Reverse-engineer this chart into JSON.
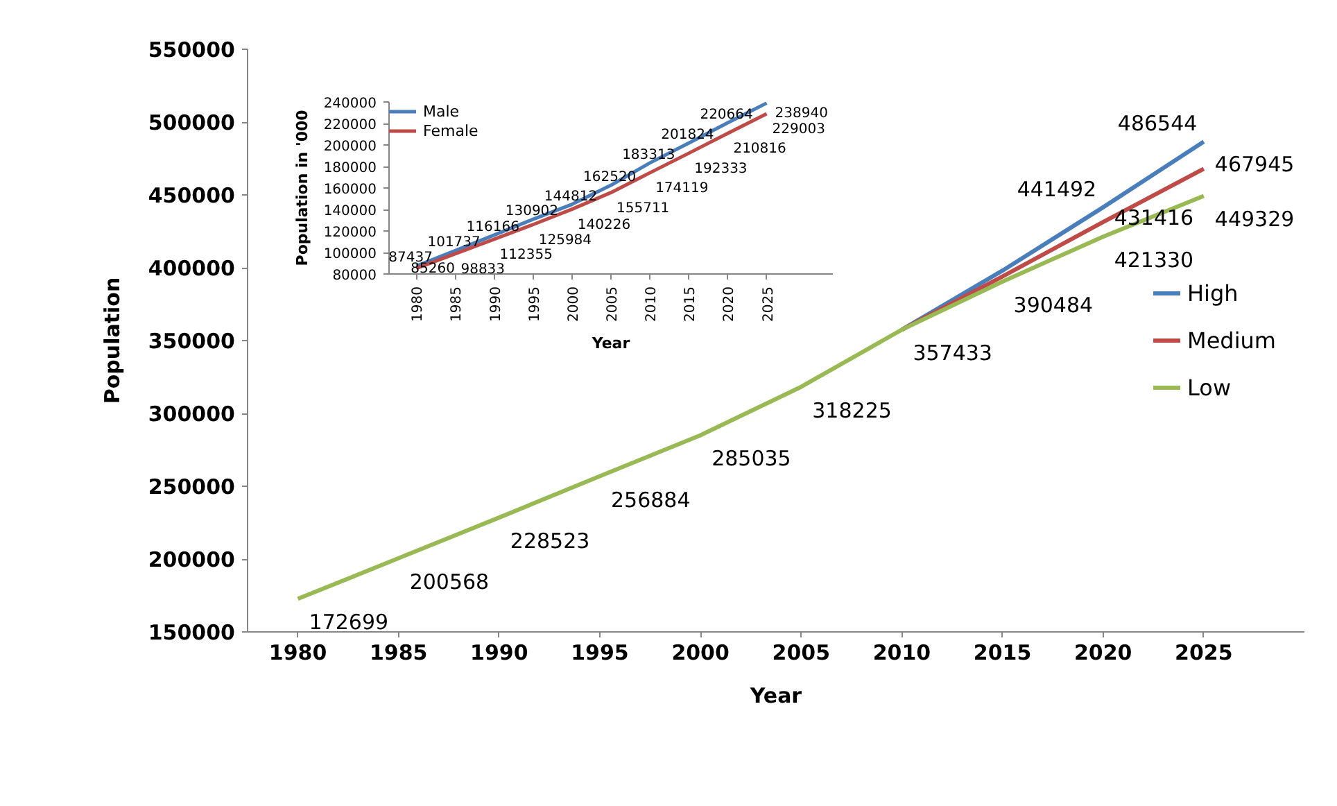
{
  "chart_data": [
    {
      "type": "line",
      "xlabel": "Year",
      "ylabel": "Population",
      "categories": [
        "1980",
        "1985",
        "1990",
        "1995",
        "2000",
        "2005",
        "2010",
        "2015",
        "2020",
        "2025"
      ],
      "ylim": [
        150000,
        550000
      ],
      "yticks": [
        150000,
        200000,
        250000,
        300000,
        350000,
        400000,
        450000,
        500000,
        550000
      ],
      "legend": "right",
      "series": [
        {
          "name": "High",
          "color": "#4a7ebb",
          "values": [
            null,
            null,
            null,
            null,
            null,
            null,
            357433,
            398000,
            441492,
            486544
          ],
          "value_labels": [
            null,
            null,
            null,
            null,
            null,
            null,
            null,
            null,
            "441492",
            "486544"
          ]
        },
        {
          "name": "Medium",
          "color": "#be4b48",
          "values": [
            null,
            null,
            null,
            null,
            null,
            null,
            357433,
            394000,
            431416,
            467945
          ],
          "value_labels": [
            null,
            null,
            null,
            null,
            null,
            null,
            null,
            null,
            "431416",
            "467945"
          ]
        },
        {
          "name": "Low",
          "color": "#98b954",
          "values": [
            172699,
            200568,
            228523,
            256884,
            285035,
            318225,
            357433,
            390484,
            421330,
            449329
          ],
          "value_labels": [
            "172699",
            "200568",
            "228523",
            "256884",
            "285035",
            "318225",
            "357433",
            "390484",
            "421330",
            "449329"
          ]
        }
      ]
    },
    {
      "type": "line",
      "xlabel": "Year",
      "ylabel": "Population in '000",
      "categories": [
        "1980",
        "1985",
        "1990",
        "1995",
        "2000",
        "2005",
        "2010",
        "2015",
        "2020",
        "2025"
      ],
      "ylim": [
        80000,
        240000
      ],
      "yticks": [
        80000,
        100000,
        120000,
        140000,
        160000,
        180000,
        200000,
        220000,
        240000
      ],
      "legend": "top left",
      "data_labels": true,
      "series": [
        {
          "name": "Male",
          "color": "#4a7ebb",
          "values": [
            87437,
            101737,
            116166,
            130902,
            144812,
            162520,
            183313,
            201824,
            220664,
            238940
          ]
        },
        {
          "name": "Female",
          "color": "#be4b48",
          "values": [
            85260,
            98833,
            112355,
            125984,
            140226,
            155711,
            174119,
            192333,
            210816,
            229003
          ]
        }
      ]
    }
  ]
}
